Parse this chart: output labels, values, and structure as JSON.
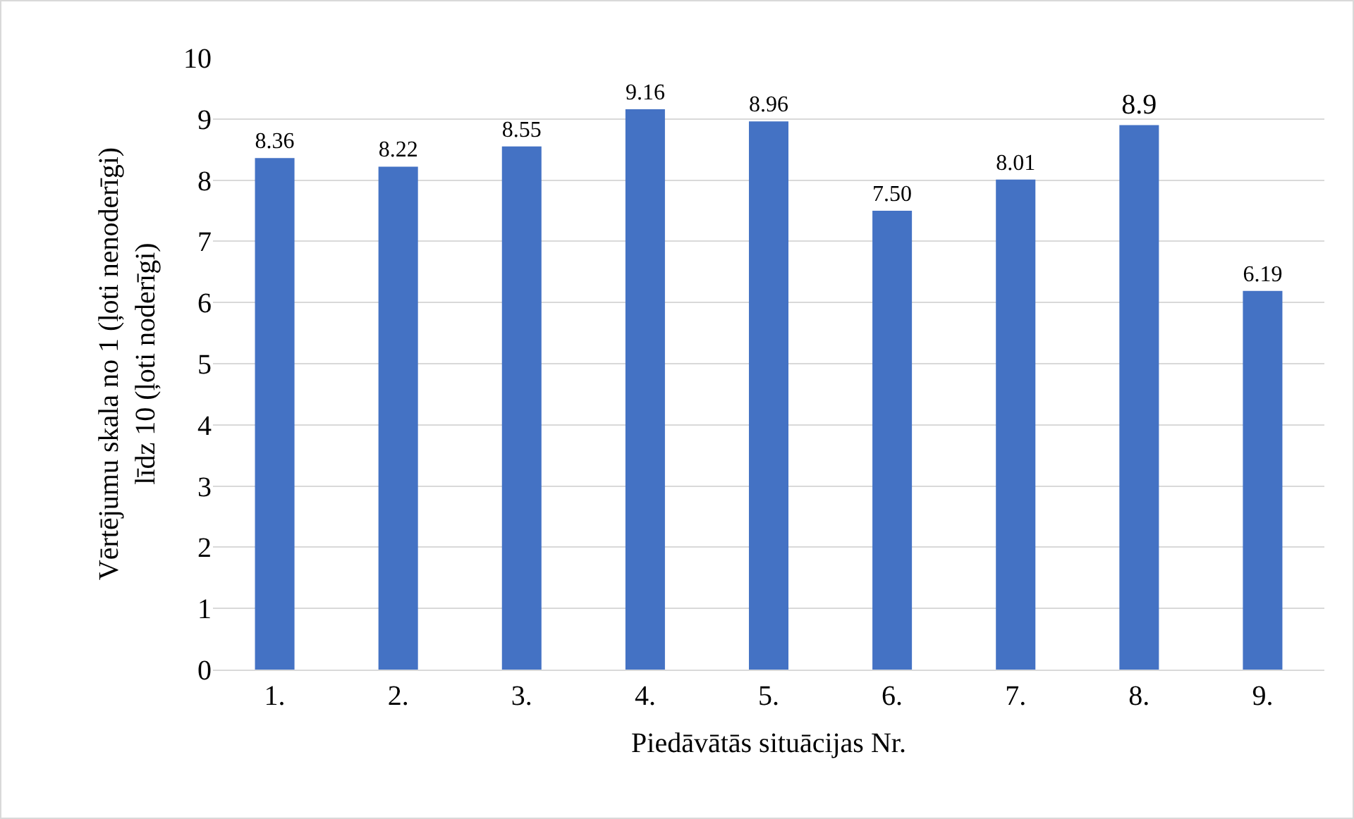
{
  "chart_data": {
    "type": "bar",
    "xlabel": "Piedāvātās situācijas Nr.",
    "ylabel": "Vērtējumu skala no 1 (ļoti nenoderīgi)\nlīdz 10 (ļoti noderīgi)",
    "categories": [
      "1.",
      "2.",
      "3.",
      "4.",
      "5.",
      "6.",
      "7.",
      "8.",
      "9."
    ],
    "values": [
      8.36,
      8.22,
      8.55,
      9.16,
      8.96,
      7.5,
      8.01,
      8.9,
      6.19
    ],
    "value_labels": [
      "8.36",
      "8.22",
      "8.55",
      "9.16",
      "8.96",
      "7.50",
      "8.01",
      "8.9",
      "6.19"
    ],
    "color": "#4472c4",
    "ylim": [
      0,
      10
    ],
    "yticks": [
      0,
      1,
      2,
      3,
      4,
      5,
      6,
      7,
      8,
      9,
      10
    ],
    "grid": "y",
    "legend": false
  }
}
